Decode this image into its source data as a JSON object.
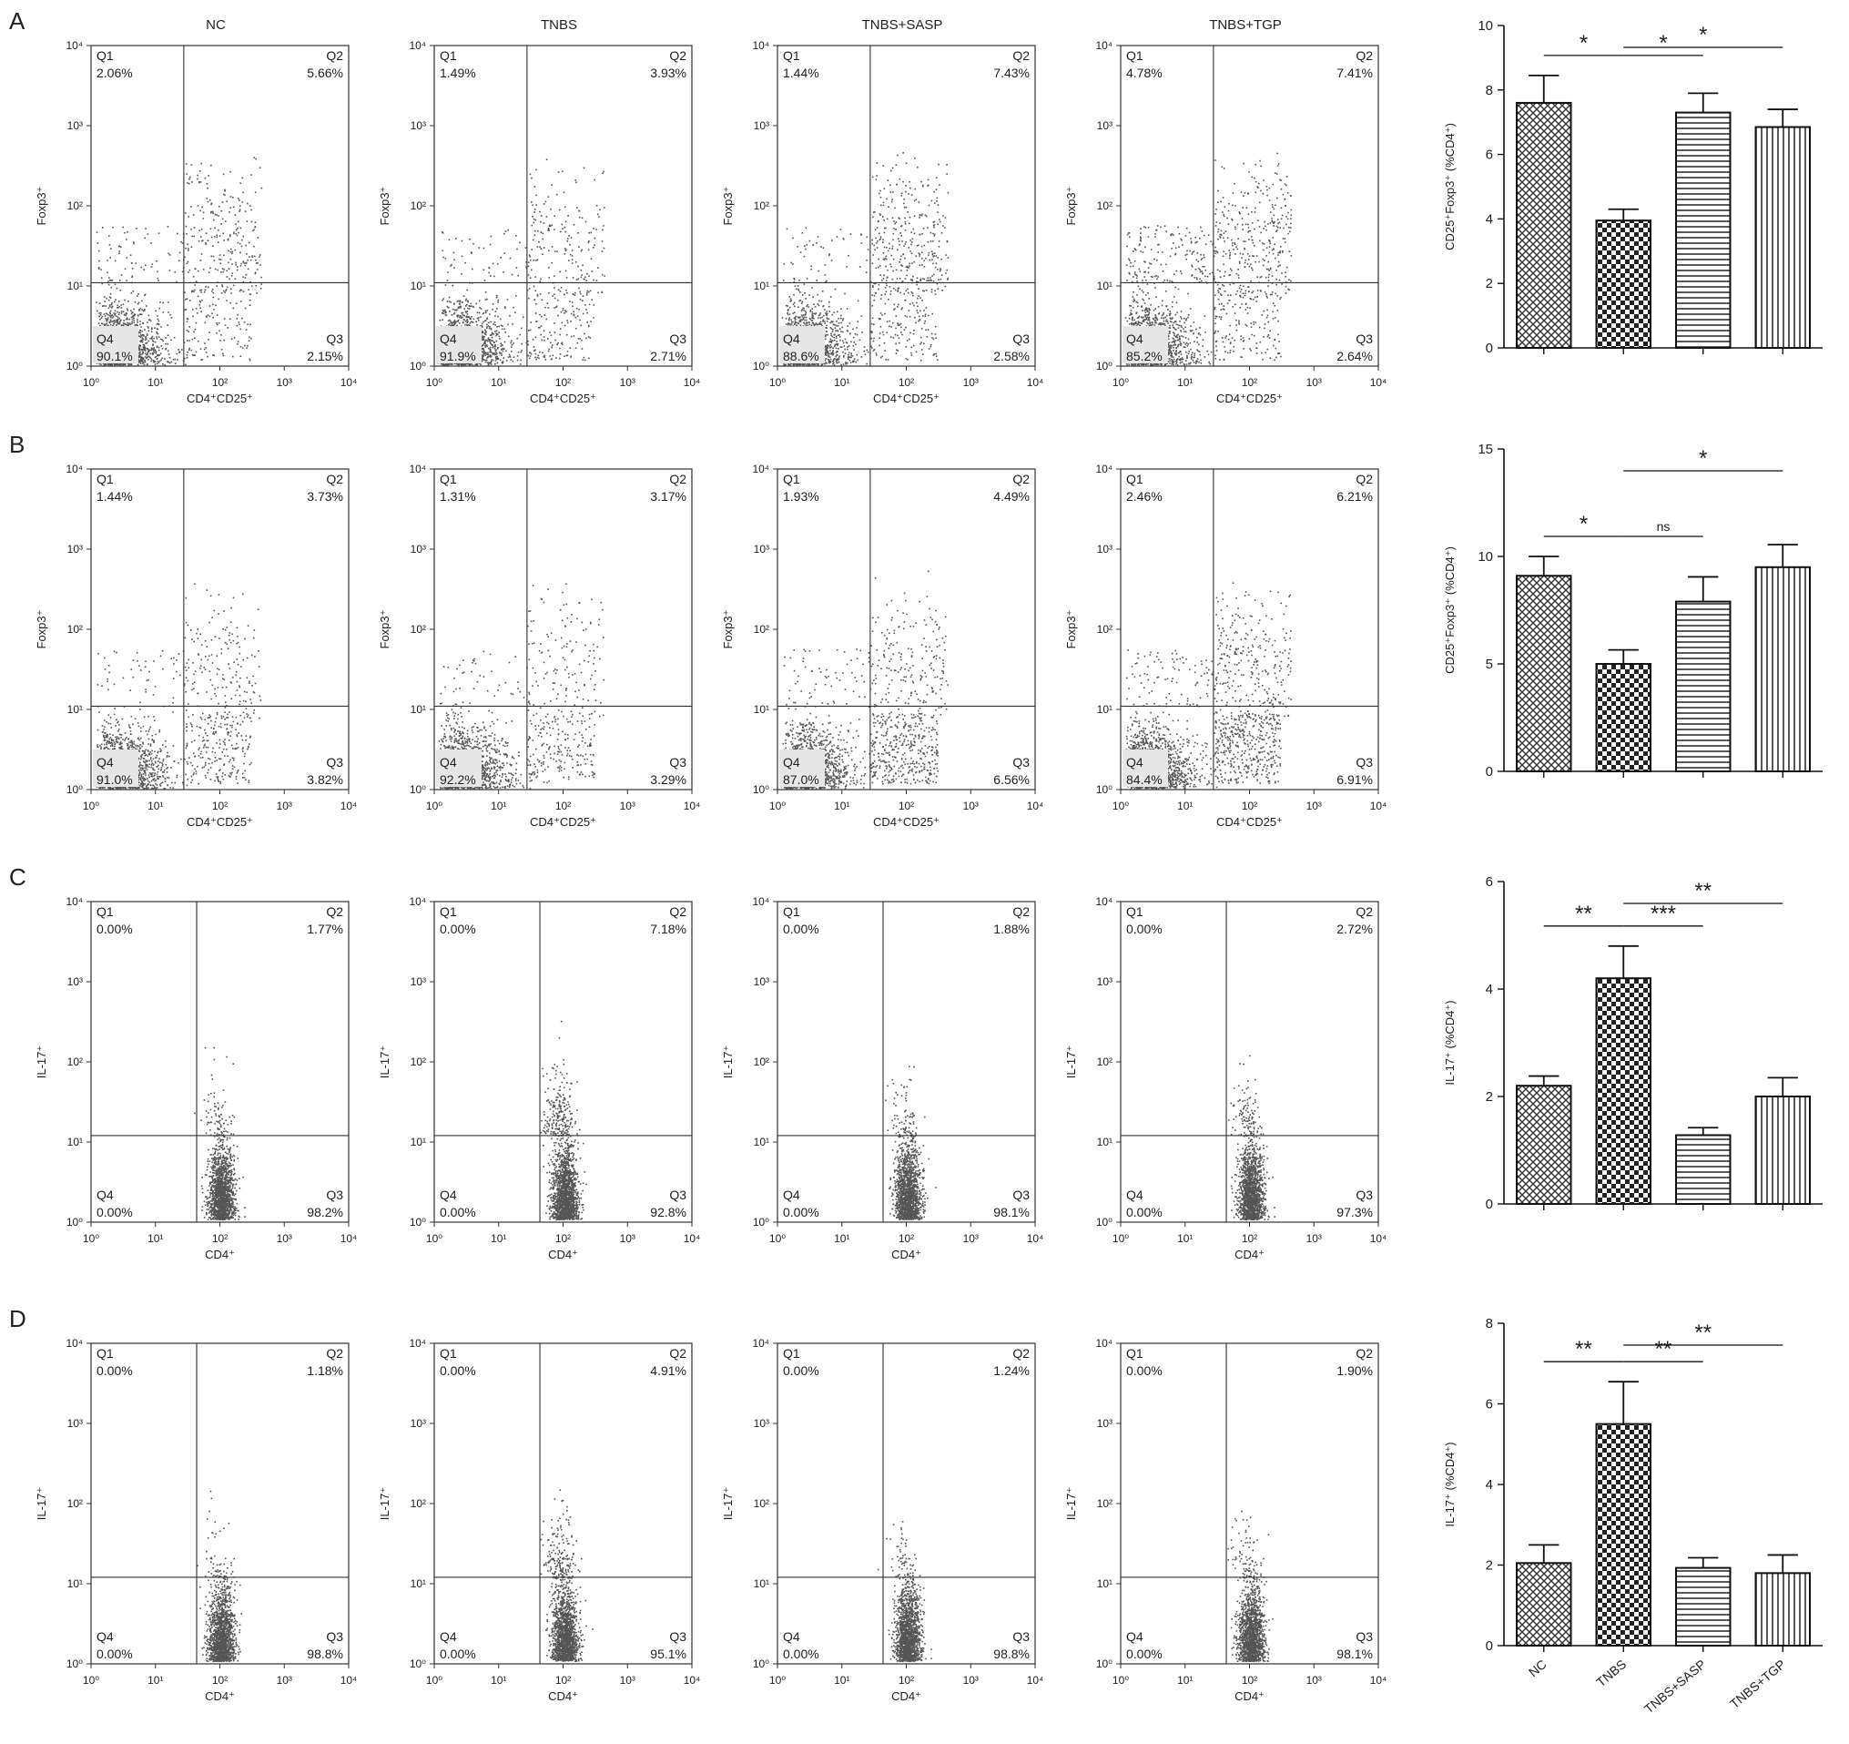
{
  "column_titles": [
    "NC",
    "TNBS",
    "TNBS+SASP",
    "TNBS+TGP"
  ],
  "colors": {
    "axis": "#333333",
    "dots": "#555555",
    "bar_stroke": "#111111",
    "bar_pattern": "#333333"
  },
  "chart_data": [
    {
      "panel": "A",
      "type": "bar",
      "ylabel": "CD25⁺Foxp3⁺ (%CD4⁺)",
      "categories": [
        "NC",
        "TNBS",
        "TNBS+SASP",
        "TNBS+TGP"
      ],
      "values": [
        7.6,
        3.95,
        7.3,
        6.85
      ],
      "errors": [
        0.85,
        0.35,
        0.6,
        0.55
      ],
      "ylim": [
        0,
        10
      ],
      "yticks": [
        0,
        2,
        4,
        6,
        8,
        10
      ],
      "significance": [
        {
          "from": 0,
          "to": 1,
          "label": "*"
        },
        {
          "from": 1,
          "to": 2,
          "label": "*"
        },
        {
          "from": 1,
          "to": 3,
          "label": "*"
        }
      ],
      "flow": {
        "xlabel": "CD4⁺CD25⁺",
        "ylabel": "Foxp3⁺",
        "kind": "treg",
        "panels": [
          {
            "q1": "2.06%",
            "q2": "5.66%",
            "q3": "2.15%",
            "q4": "90.1%"
          },
          {
            "q1": "1.49%",
            "q2": "3.93%",
            "q3": "2.71%",
            "q4": "91.9%"
          },
          {
            "q1": "1.44%",
            "q2": "7.43%",
            "q3": "2.58%",
            "q4": "88.6%"
          },
          {
            "q1": "4.78%",
            "q2": "7.41%",
            "q3": "2.64%",
            "q4": "85.2%"
          }
        ]
      }
    },
    {
      "panel": "B",
      "type": "bar",
      "ylabel": "CD25⁺Foxp3⁺ (%CD4⁺)",
      "categories": [
        "NC",
        "TNBS",
        "TNBS+SASP",
        "TNBS+TGP"
      ],
      "values": [
        9.1,
        5.0,
        7.9,
        9.5
      ],
      "errors": [
        0.9,
        0.65,
        1.15,
        1.05
      ],
      "ylim": [
        0,
        15
      ],
      "yticks": [
        0,
        5,
        10,
        15
      ],
      "significance": [
        {
          "from": 0,
          "to": 1,
          "label": "*"
        },
        {
          "from": 1,
          "to": 2,
          "label": "ns"
        },
        {
          "from": 1,
          "to": 3,
          "label": "*"
        }
      ],
      "flow": {
        "xlabel": "CD4⁺CD25⁺",
        "ylabel": "Foxp3⁺",
        "kind": "treg",
        "panels": [
          {
            "q1": "1.44%",
            "q2": "3.73%",
            "q3": "3.82%",
            "q4": "91.0%"
          },
          {
            "q1": "1.31%",
            "q2": "3.17%",
            "q3": "3.29%",
            "q4": "92.2%"
          },
          {
            "q1": "1.93%",
            "q2": "4.49%",
            "q3": "6.56%",
            "q4": "87.0%"
          },
          {
            "q1": "2.46%",
            "q2": "6.21%",
            "q3": "6.91%",
            "q4": "84.4%"
          }
        ]
      }
    },
    {
      "panel": "C",
      "type": "bar",
      "ylabel": "IL-17⁺ (%CD4⁺)",
      "categories": [
        "NC",
        "TNBS",
        "TNBS+SASP",
        "TNBS+TGP"
      ],
      "values": [
        2.2,
        4.2,
        1.28,
        2.0
      ],
      "errors": [
        0.18,
        0.6,
        0.14,
        0.35
      ],
      "ylim": [
        0,
        6
      ],
      "yticks": [
        0,
        2,
        4,
        6
      ],
      "significance": [
        {
          "from": 0,
          "to": 1,
          "label": "**"
        },
        {
          "from": 1,
          "to": 2,
          "label": "***"
        },
        {
          "from": 1,
          "to": 3,
          "label": "**"
        }
      ],
      "flow": {
        "xlabel": "CD4⁺",
        "ylabel": "IL-17⁺",
        "kind": "th17",
        "panels": [
          {
            "q1": "0.00%",
            "q2": "1.77%",
            "q3": "98.2%",
            "q4": "0.00%"
          },
          {
            "q1": "0.00%",
            "q2": "7.18%",
            "q3": "92.8%",
            "q4": "0.00%"
          },
          {
            "q1": "0.00%",
            "q2": "1.88%",
            "q3": "98.1%",
            "q4": "0.00%"
          },
          {
            "q1": "0.00%",
            "q2": "2.72%",
            "q3": "97.3%",
            "q4": "0.00%"
          }
        ]
      }
    },
    {
      "panel": "D",
      "type": "bar",
      "ylabel": "IL-17⁺ (%CD4⁺)",
      "categories": [
        "NC",
        "TNBS",
        "TNBS+SASP",
        "TNBS+TGP"
      ],
      "values": [
        2.05,
        5.5,
        1.93,
        1.8
      ],
      "errors": [
        0.45,
        1.05,
        0.25,
        0.45
      ],
      "ylim": [
        0,
        8
      ],
      "yticks": [
        0,
        2,
        4,
        6,
        8
      ],
      "significance": [
        {
          "from": 0,
          "to": 1,
          "label": "**"
        },
        {
          "from": 1,
          "to": 2,
          "label": "**"
        },
        {
          "from": 1,
          "to": 3,
          "label": "**"
        }
      ],
      "show_category_labels": true,
      "flow": {
        "xlabel": "CD4⁺",
        "ylabel": "IL-17⁺",
        "kind": "th17",
        "panels": [
          {
            "q1": "0.00%",
            "q2": "1.18%",
            "q3": "98.8%",
            "q4": "0.00%"
          },
          {
            "q1": "0.00%",
            "q2": "4.91%",
            "q3": "95.1%",
            "q4": "0.00%"
          },
          {
            "q1": "0.00%",
            "q2": "1.24%",
            "q3": "98.8%",
            "q4": "0.00%"
          },
          {
            "q1": "0.00%",
            "q2": "1.90%",
            "q3": "98.1%",
            "q4": "0.00%"
          }
        ]
      }
    }
  ],
  "flow_axis": {
    "tick_labels": [
      "10⁰",
      "10¹",
      "10²",
      "10³",
      "10⁴"
    ],
    "quadrant_names": [
      "Q1",
      "Q2",
      "Q3",
      "Q4"
    ]
  }
}
